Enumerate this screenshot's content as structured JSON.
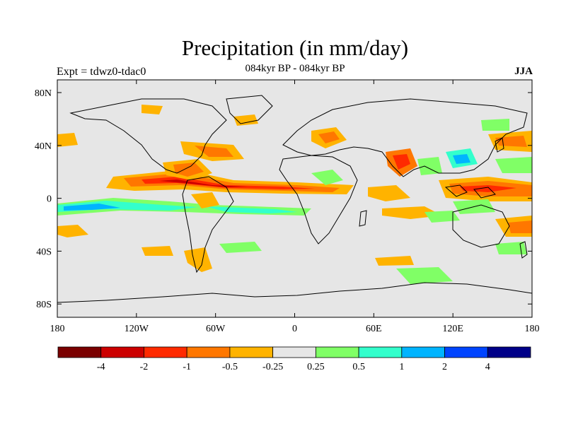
{
  "title": "Precipitation (in mm/day)",
  "subtitle_left": "Expt = tdwz0-tdac0",
  "subtitle_center": "084kyr BP - 084kyr BP",
  "subtitle_right": "JJA",
  "lon_ticks": [
    "180",
    "120W",
    "60W",
    "0",
    "60E",
    "120E",
    "180"
  ],
  "lat_ticks": [
    "80N",
    "40N",
    "0",
    "40S",
    "80S"
  ],
  "colorbar": {
    "colors": [
      "#7a0000",
      "#cc0000",
      "#ff2a00",
      "#ff7700",
      "#ffb300",
      "#e6e6e6",
      "#80ff66",
      "#33ffcc",
      "#00b4ff",
      "#0044ff",
      "#000088"
    ],
    "labels": [
      "-4",
      "-2",
      "-1",
      "-0.5",
      "-0.25",
      "0.25",
      "0.5",
      "1",
      "2",
      "4"
    ]
  },
  "colors": {
    "background": "#e6e6e6",
    "coast": "#000000"
  }
}
